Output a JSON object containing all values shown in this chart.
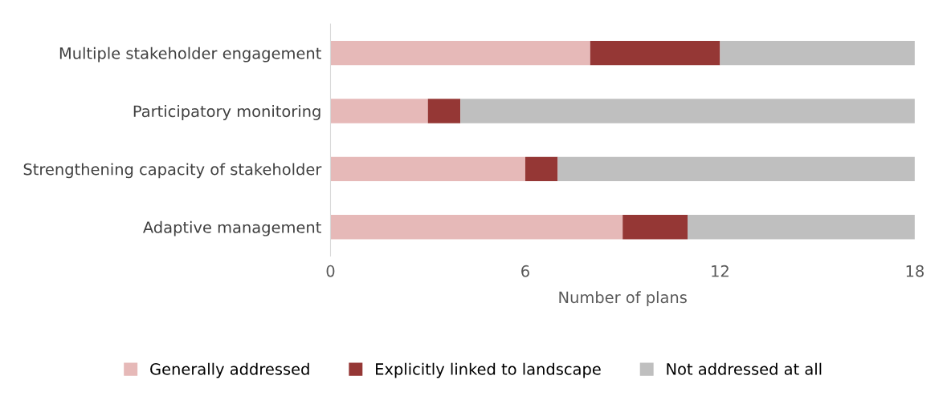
{
  "chart_data": {
    "type": "bar",
    "orientation": "horizontal",
    "stacked": true,
    "categories": [
      "Multiple stakeholder engagement",
      "Participatory monitoring",
      "Strengthening capacity of stakeholder",
      "Adaptive management"
    ],
    "series": [
      {
        "name": "Generally addressed",
        "color": "#e6b9b8",
        "values": [
          8,
          3,
          6,
          9
        ]
      },
      {
        "name": "Explicitly linked to landscape",
        "color": "#953735",
        "values": [
          4,
          1,
          1,
          2
        ]
      },
      {
        "name": "Not addressed at all",
        "color": "#bfbfbf",
        "values": [
          6,
          14,
          11,
          7
        ]
      }
    ],
    "xlabel": "Number of plans",
    "xlim": [
      0,
      18
    ],
    "xticks": [
      0,
      6,
      12,
      18
    ],
    "grid": false,
    "legend": "bottom"
  }
}
